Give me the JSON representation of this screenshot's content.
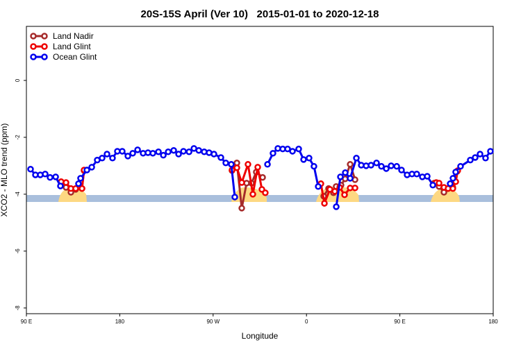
{
  "chart_data": {
    "type": "line",
    "title": "20S-15S April (Ver 10)   2015-01-01 to 2020-12-18",
    "x_label": "Longitude",
    "y_label": "XCO2 - MLO trend (ppm)",
    "xlim": [
      90,
      540
    ],
    "ylim": [
      -8.2,
      1.9
    ],
    "xticks": [
      {
        "value": 90,
        "label": "90 E"
      },
      180,
      {
        "value": 270,
        "label": "90 W"
      },
      {
        "value": 360,
        "label": "0"
      },
      {
        "value": 450,
        "label": "90 E"
      },
      {
        "value": 540,
        "label": "180"
      }
    ],
    "yticks": [
      0,
      -2,
      -4,
      -6,
      -8
    ],
    "legend": "top-left",
    "series": [
      {
        "name": "Land Nadir",
        "color": "#a52a2a",
        "x": [
          123.5,
          128.2,
          132.9,
          137.5,
          143.6,
          145.6,
          216,
          288.2,
          292.9,
          297.6,
          302.3,
          307.0,
          311.6,
          317.7,
          340,
          376.6,
          381.3,
          386.0,
          388.6,
          393.3,
          397.3,
          402.1,
          406.8,
          445,
          483.1,
          487.8,
          492.5,
          496.5,
          501.1,
          505.2
        ],
        "values": [
          -3.59,
          -3.76,
          -3.93,
          -3.83,
          -3.8,
          -3.17,
          null,
          -3.17,
          -2.9,
          -4.49,
          -3.61,
          -3.61,
          -3.22,
          -3.41,
          null,
          -4.07,
          -3.8,
          -3.95,
          -3.73,
          -3.68,
          -3.46,
          -2.95,
          -3.49,
          null,
          -3.61,
          -3.73,
          -3.93,
          -3.8,
          -3.76,
          -3.2
        ]
      },
      {
        "name": "Land Glint",
        "color": "#ee0000",
        "x": [
          123.5,
          128.2,
          132.9,
          137.5,
          143.6,
          145.6,
          216,
          288.2,
          292.9,
          297.6,
          303.6,
          308.3,
          313.0,
          317.0,
          320.3,
          345,
          373.9,
          377.3,
          382.6,
          387.3,
          392.0,
          396.7,
          402.1,
          406.8,
          445,
          485.1,
          487.8,
          492.5,
          496.5,
          501.1,
          503.9,
          505.8
        ],
        "values": [
          -3.56,
          -3.59,
          -3.8,
          -3.8,
          -3.8,
          -3.15,
          null,
          -3.15,
          -3.07,
          -3.59,
          -2.95,
          -4.0,
          -3.05,
          -3.83,
          -3.95,
          null,
          -3.63,
          -4.32,
          -3.83,
          -3.9,
          -3.76,
          -4.02,
          -3.78,
          -3.78,
          null,
          -3.59,
          -3.61,
          -3.76,
          -3.8,
          -3.8,
          -3.56,
          -3.17
        ]
      },
      {
        "name": "Ocean Glint",
        "color": "#0000ee",
        "x": [
          94.0,
          98.7,
          103.4,
          108.1,
          112.8,
          118.2,
          122.8,
          131,
          140.2,
          142.2,
          148.3,
          153.0,
          158.3,
          163.0,
          167.7,
          173.0,
          177.7,
          182.4,
          187.8,
          192.5,
          197.2,
          202.5,
          207.2,
          211.9,
          217.3,
          222.0,
          226.7,
          232.0,
          236.7,
          241.4,
          246.8,
          251.5,
          256.2,
          261.4,
          266.1,
          270.8,
          277.5,
          282.2,
          287.5,
          290.9,
          305,
          322.4,
          327.7,
          332.4,
          337.1,
          341.8,
          346.5,
          352.5,
          357.2,
          362.5,
          367.2,
          371.3,
          380,
          388.7,
          392.7,
          397.4,
          402.1,
          408.1,
          412.8,
          417.5,
          422.2,
          427.5,
          432.2,
          436.9,
          441.6,
          447.0,
          451.6,
          457.0,
          461.7,
          466.3,
          471.7,
          476.4,
          481.8,
          490,
          498.5,
          501.2,
          503.8,
          508.5,
          517.9,
          522.6,
          527.3,
          532.6,
          537.3
        ],
        "values": [
          -3.12,
          -3.32,
          -3.32,
          -3.29,
          -3.41,
          -3.39,
          -3.71,
          null,
          -3.63,
          -3.44,
          -3.15,
          -3.05,
          -2.8,
          -2.73,
          -2.59,
          -2.73,
          -2.49,
          -2.49,
          -2.66,
          -2.56,
          -2.44,
          -2.56,
          -2.54,
          -2.56,
          -2.51,
          -2.63,
          -2.51,
          -2.46,
          -2.59,
          -2.49,
          -2.51,
          -2.39,
          -2.46,
          -2.51,
          -2.54,
          -2.59,
          -2.71,
          -2.9,
          -2.95,
          -4.1,
          null,
          -2.95,
          -2.56,
          -2.39,
          -2.41,
          -2.41,
          -2.49,
          -2.41,
          -2.78,
          -2.73,
          -3.02,
          -3.73,
          null,
          -4.44,
          -3.39,
          -3.24,
          -3.44,
          -2.73,
          -2.98,
          -3.0,
          -2.98,
          -2.9,
          -3.02,
          -3.1,
          -3.0,
          -3.02,
          -3.15,
          -3.32,
          -3.29,
          -3.29,
          -3.39,
          -3.37,
          -3.68,
          null,
          -3.63,
          -3.44,
          -3.22,
          -3.02,
          -2.8,
          -2.71,
          -2.59,
          -2.73,
          -2.49
        ]
      }
    ]
  }
}
